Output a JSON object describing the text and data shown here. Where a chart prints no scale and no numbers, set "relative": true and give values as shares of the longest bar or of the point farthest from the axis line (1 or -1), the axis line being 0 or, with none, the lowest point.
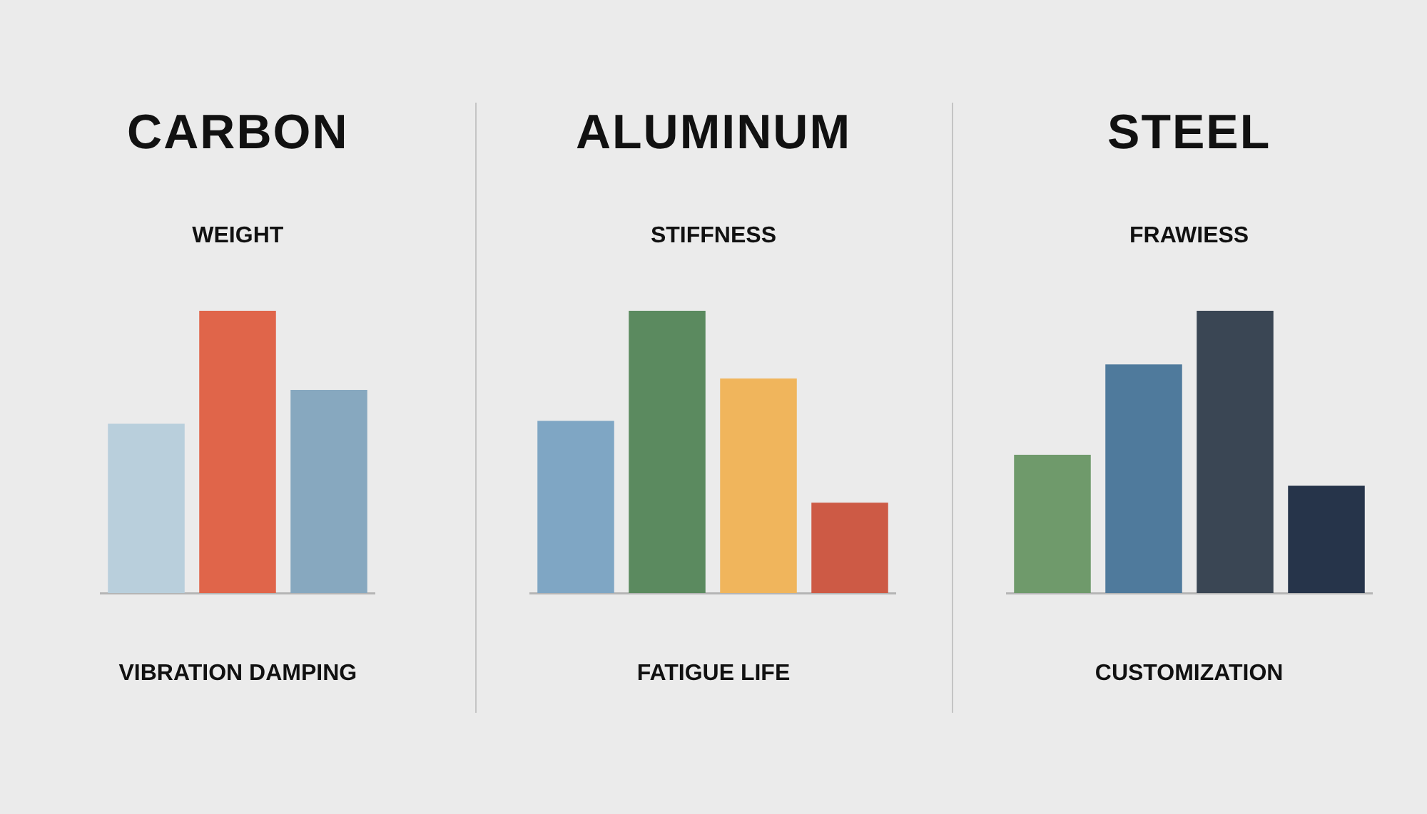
{
  "chart_data": [
    {
      "type": "bar",
      "title": "CARBON",
      "subtitle": "WEIGHT",
      "xlabel": "VIBRATION DAMPING",
      "relative": true,
      "categories": [
        null,
        null,
        null
      ],
      "values": [
        0.6,
        1,
        0.72
      ],
      "colors": [
        "#b9cfdc",
        "#e0654a",
        "#87a8bf"
      ]
    },
    {
      "type": "bar",
      "title": "ALUMINUM",
      "subtitle": "STIFFNESS",
      "xlabel": "FATIGUE LIFE",
      "relative": true,
      "categories": [
        null,
        null,
        null,
        null
      ],
      "values": [
        0.61,
        1,
        0.76,
        0.32
      ],
      "colors": [
        "#7fa6c4",
        "#5b8a5f",
        "#f0b55c",
        "#cd5a45"
      ]
    },
    {
      "type": "bar",
      "title": "STEEL",
      "subtitle": "FRAWIESS",
      "xlabel": "CUSTOMIZATION",
      "relative": true,
      "categories": [
        null,
        null,
        null,
        null
      ],
      "values": [
        0.49,
        0.81,
        1,
        0.38
      ],
      "colors": [
        "#6f9a6b",
        "#4f7a9c",
        "#3a4654",
        "#26344a"
      ]
    }
  ]
}
